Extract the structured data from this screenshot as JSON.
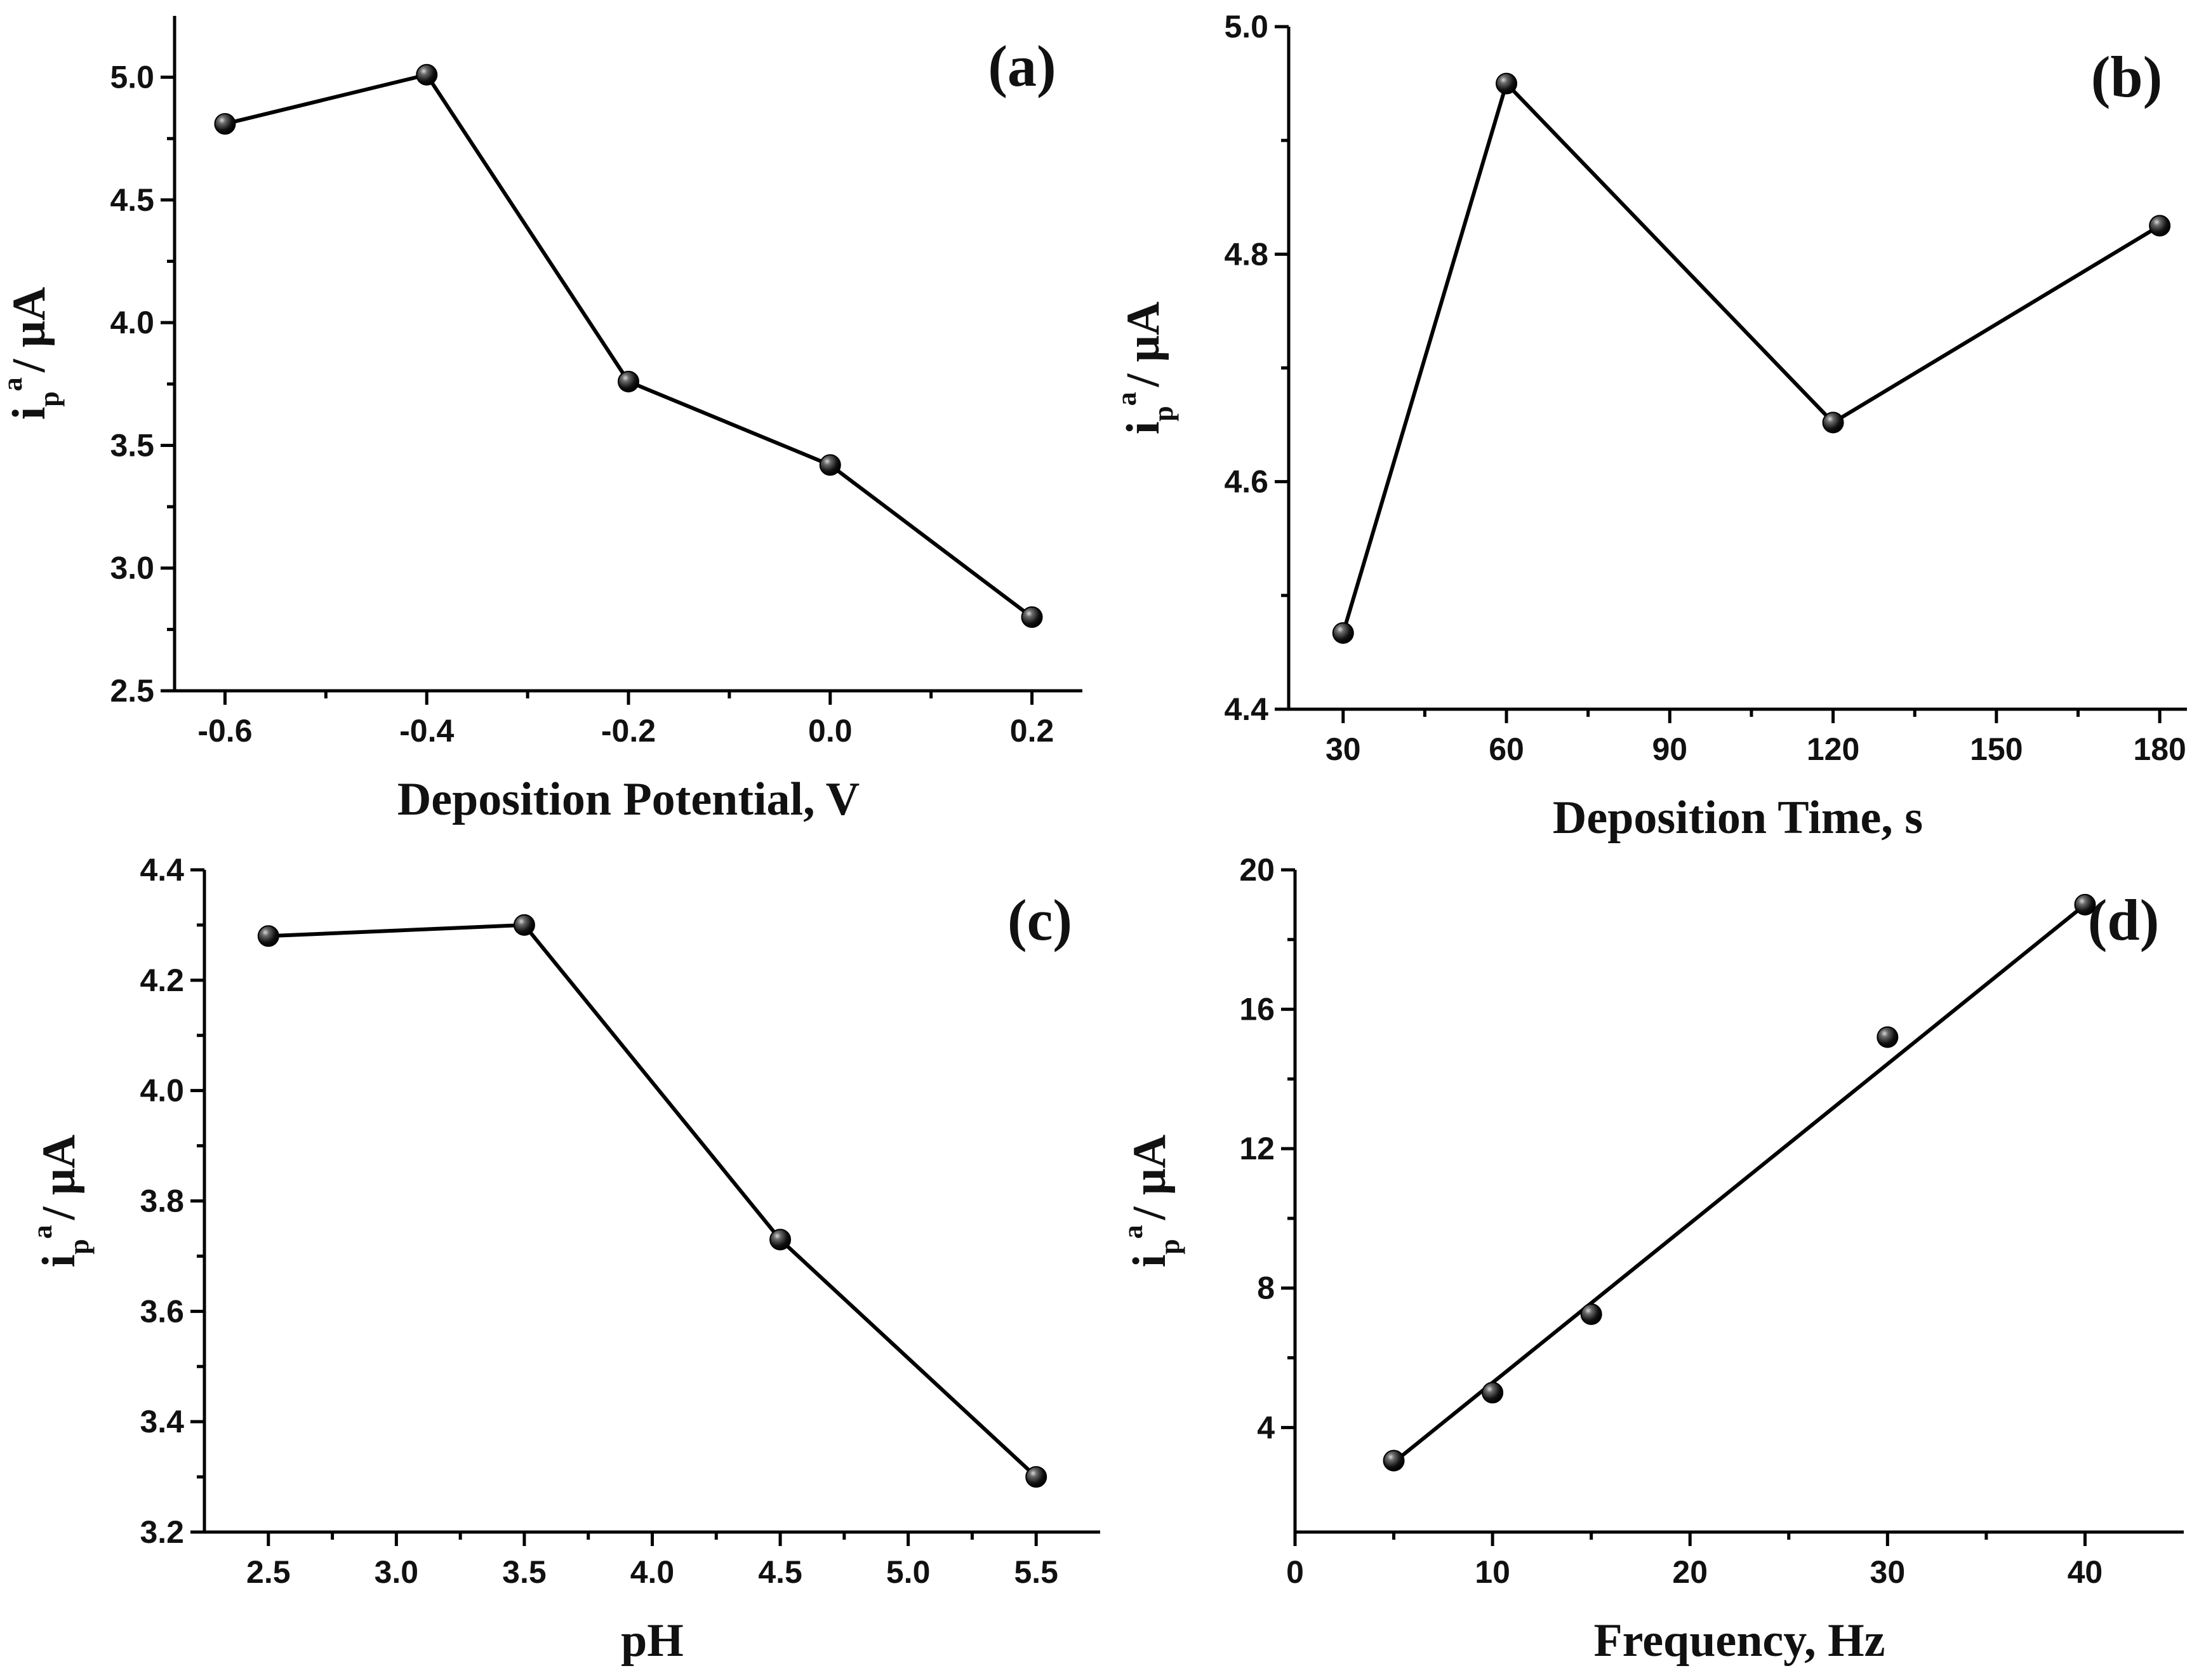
{
  "figure": {
    "ylabel": {
      "main": "i",
      "sub": "p",
      "sup": "a",
      "unit": "/ μA"
    }
  },
  "chart_data": [
    {
      "panel": "(a)",
      "type": "line",
      "xlabel": "Deposition Potential, V",
      "x": [
        -0.6,
        -0.4,
        -0.2,
        0.0,
        0.2
      ],
      "y": [
        4.81,
        5.01,
        3.76,
        3.42,
        2.8
      ],
      "xlim": [
        -0.65,
        0.25
      ],
      "ylim": [
        2.5,
        5.25
      ],
      "xticks": [
        -0.6,
        -0.4,
        -0.2,
        0.0,
        0.2
      ],
      "xtick_labels": [
        "-0.6",
        "-0.4",
        "-0.2",
        "0.0",
        "0.2"
      ],
      "yticks": [
        2.5,
        3.0,
        3.5,
        4.0,
        4.5,
        5.0
      ],
      "ytick_labels": [
        "2.5",
        "3.0",
        "3.5",
        "4.0",
        "4.5",
        "5.0"
      ],
      "connect": "points"
    },
    {
      "panel": "(b)",
      "type": "line",
      "xlabel": "Deposition Time, s",
      "x": [
        30,
        60,
        120,
        180
      ],
      "y": [
        4.467,
        4.95,
        4.652,
        4.825
      ],
      "xlim": [
        20,
        185
      ],
      "ylim": [
        4.4,
        5.0
      ],
      "xticks": [
        30,
        60,
        90,
        120,
        150,
        180
      ],
      "xtick_labels": [
        "30",
        "60",
        "90",
        "120",
        "150",
        "180"
      ],
      "yticks": [
        4.4,
        4.6,
        4.8,
        5.0
      ],
      "ytick_labels": [
        "4.4",
        "4.6",
        "4.8",
        "5.0"
      ],
      "connect": "points"
    },
    {
      "panel": "(c)",
      "type": "line",
      "xlabel": "pH",
      "x": [
        2.5,
        3.5,
        4.5,
        5.5
      ],
      "y": [
        4.28,
        4.3,
        3.73,
        3.3
      ],
      "xlim": [
        2.25,
        5.75
      ],
      "ylim": [
        3.2,
        4.4
      ],
      "xticks": [
        2.5,
        3.0,
        3.5,
        4.0,
        4.5,
        5.0,
        5.5
      ],
      "xtick_labels": [
        "2.5",
        "3.0",
        "3.5",
        "4.0",
        "4.5",
        "5.0",
        "5.5"
      ],
      "yticks": [
        3.2,
        3.4,
        3.6,
        3.8,
        4.0,
        4.2,
        4.4
      ],
      "ytick_labels": [
        "3.2",
        "3.4",
        "3.6",
        "3.8",
        "4.0",
        "4.2",
        "4.4"
      ],
      "connect": "points"
    },
    {
      "panel": "(d)",
      "type": "scatter",
      "xlabel": "Frequency, Hz",
      "x": [
        5,
        10,
        15,
        30,
        40
      ],
      "y": [
        3.05,
        5.0,
        7.25,
        15.2,
        19.0
      ],
      "xlim": [
        0,
        45
      ],
      "ylim": [
        1,
        20
      ],
      "xticks": [
        0,
        10,
        20,
        30,
        40
      ],
      "xtick_labels": [
        "0",
        "10",
        "20",
        "30",
        "40"
      ],
      "yticks": [
        4,
        8,
        12,
        16,
        20
      ],
      "ytick_labels": [
        "4",
        "8",
        "12",
        "16",
        "20"
      ],
      "fit_line": {
        "x": [
          5,
          40
        ],
        "y": [
          3.0,
          19.0
        ]
      },
      "connect": "fit"
    }
  ]
}
